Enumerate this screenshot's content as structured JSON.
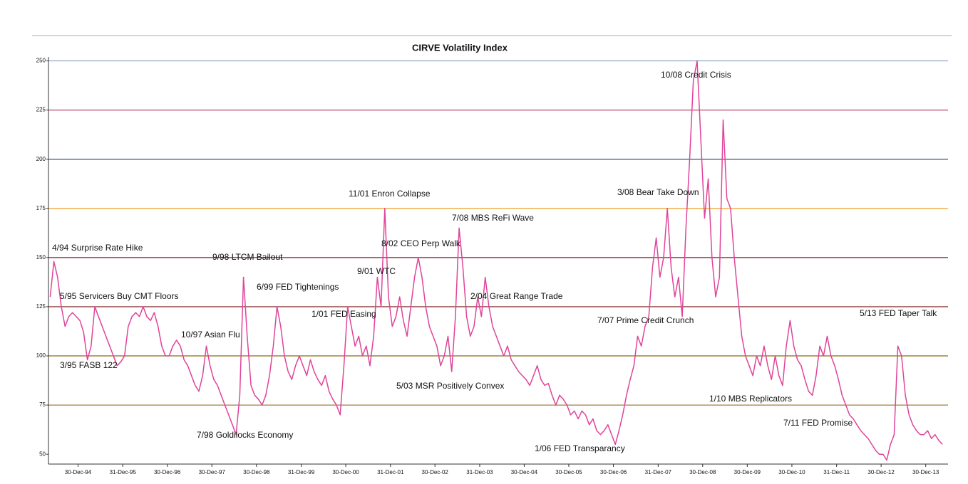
{
  "chart_data": {
    "type": "line",
    "title": "CIRVE Volatility Index",
    "x": [
      "1994-05",
      "1994-06",
      "1994-07",
      "1994-08",
      "1994-09",
      "1994-10",
      "1994-11",
      "1994-12",
      "1995-01",
      "1995-02",
      "1995-03",
      "1995-04",
      "1995-05",
      "1995-06",
      "1995-07",
      "1995-08",
      "1995-09",
      "1995-10",
      "1995-11",
      "1995-12",
      "1996-01",
      "1996-02",
      "1996-03",
      "1996-04",
      "1996-05",
      "1996-06",
      "1996-07",
      "1996-08",
      "1996-09",
      "1996-10",
      "1996-11",
      "1996-12",
      "1997-01",
      "1997-02",
      "1997-03",
      "1997-04",
      "1997-05",
      "1997-06",
      "1997-07",
      "1997-08",
      "1997-09",
      "1997-10",
      "1997-11",
      "1997-12",
      "1998-01",
      "1998-02",
      "1998-03",
      "1998-04",
      "1998-05",
      "1998-06",
      "1998-07",
      "1998-08",
      "1998-09",
      "1998-10",
      "1998-11",
      "1998-12",
      "1999-01",
      "1999-02",
      "1999-03",
      "1999-04",
      "1999-05",
      "1999-06",
      "1999-07",
      "1999-08",
      "1999-09",
      "1999-10",
      "1999-11",
      "1999-12",
      "2000-01",
      "2000-02",
      "2000-03",
      "2000-04",
      "2000-05",
      "2000-06",
      "2000-07",
      "2000-08",
      "2000-09",
      "2000-10",
      "2000-11",
      "2000-12",
      "2001-01",
      "2001-02",
      "2001-03",
      "2001-04",
      "2001-05",
      "2001-06",
      "2001-07",
      "2001-08",
      "2001-09",
      "2001-10",
      "2001-11",
      "2001-12",
      "2002-01",
      "2002-02",
      "2002-03",
      "2002-04",
      "2002-05",
      "2002-06",
      "2002-07",
      "2002-08",
      "2002-09",
      "2002-10",
      "2002-11",
      "2002-12",
      "2003-01",
      "2003-02",
      "2003-03",
      "2003-04",
      "2003-05",
      "2003-06",
      "2003-07",
      "2003-08",
      "2003-09",
      "2003-10",
      "2003-11",
      "2003-12",
      "2004-01",
      "2004-02",
      "2004-03",
      "2004-04",
      "2004-05",
      "2004-06",
      "2004-07",
      "2004-08",
      "2004-09",
      "2004-10",
      "2004-11",
      "2004-12",
      "2005-01",
      "2005-02",
      "2005-03",
      "2005-04",
      "2005-05",
      "2005-06",
      "2005-07",
      "2005-08",
      "2005-09",
      "2005-10",
      "2005-11",
      "2005-12",
      "2006-01",
      "2006-02",
      "2006-03",
      "2006-04",
      "2006-05",
      "2006-06",
      "2006-07",
      "2006-08",
      "2006-09",
      "2006-10",
      "2006-11",
      "2006-12",
      "2007-01",
      "2007-02",
      "2007-03",
      "2007-04",
      "2007-05",
      "2007-06",
      "2007-07",
      "2007-08",
      "2007-09",
      "2007-10",
      "2007-11",
      "2007-12",
      "2008-01",
      "2008-02",
      "2008-03",
      "2008-04",
      "2008-05",
      "2008-06",
      "2008-07",
      "2008-08",
      "2008-09",
      "2008-10",
      "2008-11",
      "2008-12",
      "2009-01",
      "2009-02",
      "2009-03",
      "2009-04",
      "2009-05",
      "2009-06",
      "2009-07",
      "2009-08",
      "2009-09",
      "2009-10",
      "2009-11",
      "2009-12",
      "2010-01",
      "2010-02",
      "2010-03",
      "2010-04",
      "2010-05",
      "2010-06",
      "2010-07",
      "2010-08",
      "2010-09",
      "2010-10",
      "2010-11",
      "2010-12",
      "2011-01",
      "2011-02",
      "2011-03",
      "2011-04",
      "2011-05",
      "2011-06",
      "2011-07",
      "2011-08",
      "2011-09",
      "2011-10",
      "2011-11",
      "2011-12",
      "2012-01",
      "2012-02",
      "2012-03",
      "2012-04",
      "2012-05",
      "2012-06",
      "2012-07",
      "2012-08",
      "2012-09",
      "2012-10",
      "2012-11",
      "2012-12",
      "2013-01",
      "2013-02",
      "2013-03",
      "2013-04",
      "2013-05",
      "2013-06",
      "2013-07",
      "2013-08",
      "2013-09",
      "2013-10",
      "2013-11",
      "2013-12",
      "2014-01",
      "2014-02",
      "2014-03",
      "2014-04",
      "2014-05"
    ],
    "series": [
      {
        "name": "CIRVE",
        "color": "#e0449a",
        "values": [
          130,
          148,
          140,
          125,
          115,
          120,
          122,
          120,
          118,
          112,
          98,
          105,
          125,
          120,
          115,
          110,
          105,
          100,
          95,
          97,
          100,
          115,
          120,
          122,
          120,
          125,
          120,
          118,
          122,
          115,
          105,
          100,
          100,
          105,
          108,
          105,
          98,
          95,
          90,
          85,
          82,
          90,
          105,
          95,
          88,
          85,
          80,
          75,
          70,
          65,
          60,
          80,
          140,
          110,
          85,
          80,
          78,
          75,
          80,
          90,
          105,
          125,
          115,
          100,
          92,
          88,
          95,
          100,
          95,
          90,
          98,
          92,
          88,
          85,
          90,
          82,
          78,
          75,
          70,
          95,
          125,
          115,
          105,
          110,
          100,
          105,
          95,
          110,
          140,
          125,
          175,
          130,
          115,
          120,
          130,
          118,
          110,
          125,
          140,
          150,
          140,
          125,
          115,
          110,
          105,
          95,
          100,
          110,
          92,
          120,
          165,
          145,
          120,
          110,
          115,
          130,
          120,
          140,
          125,
          115,
          110,
          105,
          100,
          105,
          98,
          95,
          92,
          90,
          88,
          85,
          90,
          95,
          88,
          85,
          86,
          80,
          75,
          80,
          78,
          75,
          70,
          72,
          68,
          72,
          70,
          65,
          68,
          62,
          60,
          62,
          65,
          60,
          55,
          62,
          70,
          80,
          88,
          95,
          110,
          105,
          115,
          120,
          145,
          160,
          140,
          150,
          175,
          145,
          130,
          140,
          120,
          165,
          200,
          240,
          250,
          210,
          170,
          190,
          150,
          130,
          140,
          220,
          180,
          175,
          150,
          130,
          110,
          100,
          95,
          90,
          100,
          95,
          105,
          95,
          88,
          100,
          90,
          85,
          105,
          118,
          105,
          98,
          95,
          88,
          82,
          80,
          90,
          105,
          100,
          110,
          100,
          95,
          88,
          80,
          75,
          70,
          68,
          65,
          62,
          60,
          58,
          55,
          52,
          50,
          50,
          47,
          55,
          60,
          105,
          100,
          80,
          70,
          65,
          62,
          60,
          60,
          62,
          58,
          60,
          57,
          55
        ]
      }
    ],
    "xlim": [
      "1994-05-01",
      "2014-06-30"
    ],
    "xticks": [
      {
        "value": "1994-12-30",
        "label": "30-Dec-94"
      },
      {
        "value": "1995-12-31",
        "label": "31-Dec-95"
      },
      {
        "value": "1996-12-30",
        "label": "30-Dec-96"
      },
      {
        "value": "1997-12-30",
        "label": "30-Dec-97"
      },
      {
        "value": "1998-12-30",
        "label": "30-Dec-98"
      },
      {
        "value": "1999-12-31",
        "label": "31-Dec-99"
      },
      {
        "value": "2000-12-30",
        "label": "30-Dec-00"
      },
      {
        "value": "2001-12-31",
        "label": "31-Dec-01"
      },
      {
        "value": "2002-12-30",
        "label": "30-Dec-02"
      },
      {
        "value": "2003-12-31",
        "label": "31-Dec-03"
      },
      {
        "value": "2004-12-30",
        "label": "30-Dec-04"
      },
      {
        "value": "2005-12-30",
        "label": "30-Dec-05"
      },
      {
        "value": "2006-12-30",
        "label": "30-Dec-06"
      },
      {
        "value": "2007-12-31",
        "label": "31-Dec-07"
      },
      {
        "value": "2008-12-30",
        "label": "30-Dec-08"
      },
      {
        "value": "2009-12-30",
        "label": "30-Dec-09"
      },
      {
        "value": "2010-12-30",
        "label": "30-Dec-10"
      },
      {
        "value": "2011-12-31",
        "label": "31-Dec-11"
      },
      {
        "value": "2012-12-30",
        "label": "30-Dec-12"
      },
      {
        "value": "2013-12-30",
        "label": "30-Dec-13"
      }
    ],
    "ylim": [
      45,
      252
    ],
    "yticks": [
      50,
      75,
      100,
      125,
      150,
      175,
      200,
      225,
      250
    ],
    "grid": true,
    "grid_colors": [
      null,
      "#a08040",
      "#8b6a14",
      "#7a1a1a",
      "#8b1c2c",
      "#f0a030",
      "#1f3c66",
      "#c0406a",
      "#8fa6c8"
    ],
    "annotations": [
      "4/94 Surprise Rate Hike",
      "5/95 Servicers Buy CMT Floors",
      "3/95 FASB 122",
      "10/97 Asian Flu",
      "9/98 LTCM Bailout",
      "7/98 Goldilocks Economy",
      "6/99 FED Tightenings",
      "1/01 FED Easing",
      "9/01 WTC",
      "11/01 Enron Collapse",
      "8/02 CEO Perp Walk",
      "7/08 MBS ReFi Wave",
      "5/03 MSR Positively Convex",
      "2/04 Great Range Trade",
      "1/06 FED Transparancy",
      "7/07 Prime Credit Crunch",
      "3/08 Bear Take Down",
      "10/08 Credit Crisis",
      "1/10 MBS Replicators",
      "7/11 FED Promise",
      "5/13 FED Taper Talk"
    ]
  }
}
